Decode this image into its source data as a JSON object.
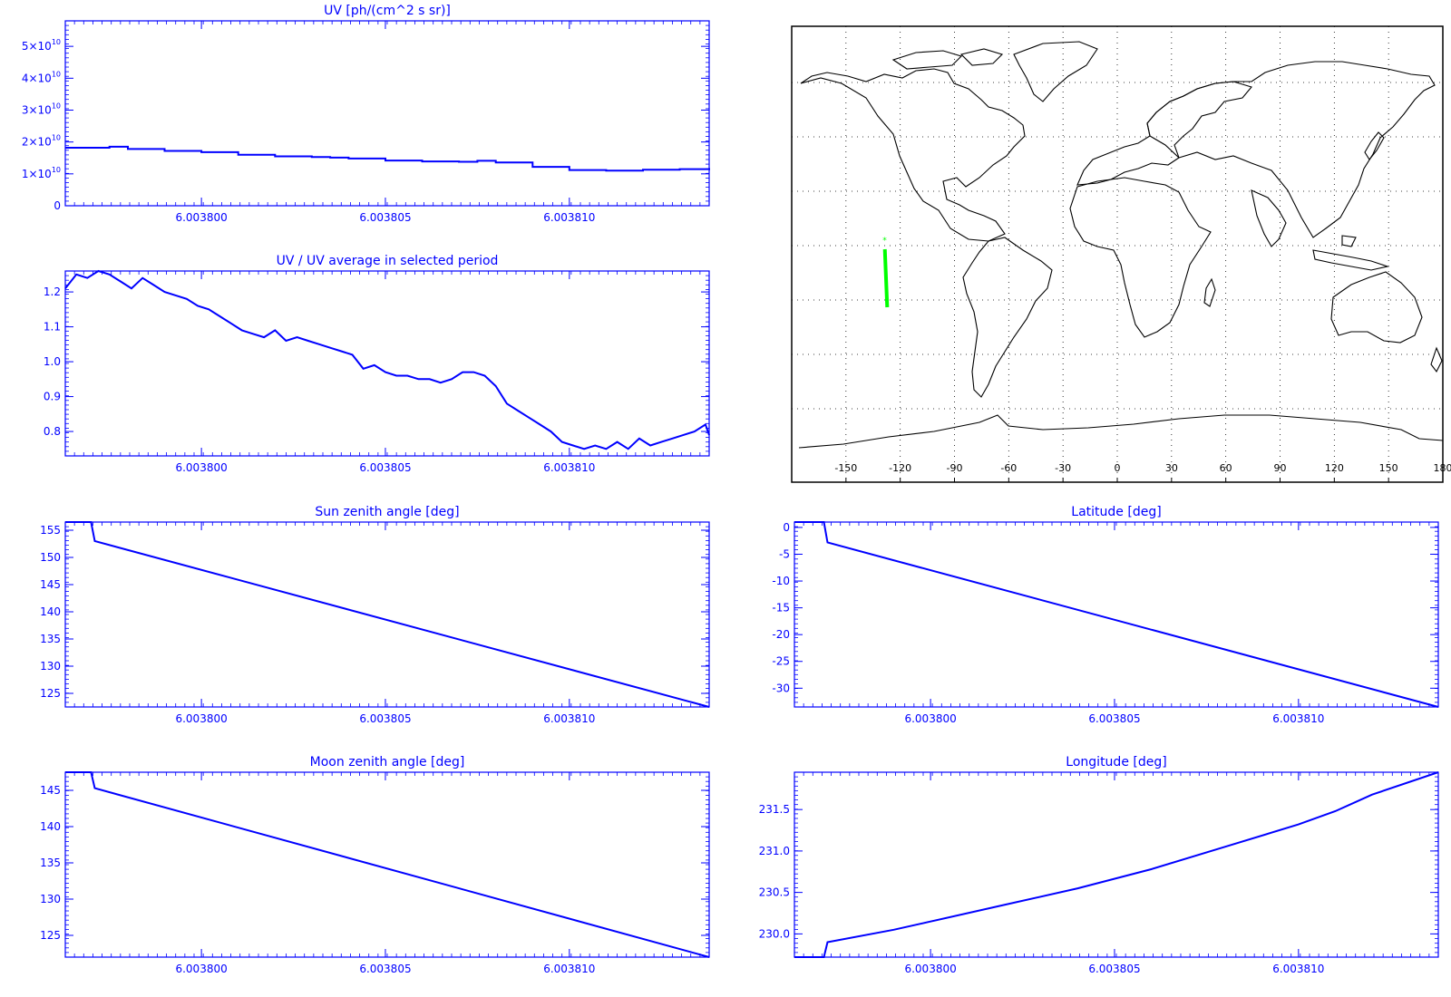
{
  "colors": {
    "axis": "#0000ff",
    "line": "#0000ff",
    "track": "#00ff00",
    "map": "#000000"
  },
  "chart_data": [
    {
      "id": "uv",
      "type": "line",
      "title": "UV [ph/(cm^2 s sr)]",
      "xlabel": "",
      "ylabel": "",
      "xlim": [
        6.0037963,
        6.0038138
      ],
      "xticks": [
        "6.003800",
        "6.003805",
        "6.003810"
      ],
      "xtick_values": [
        6.0038,
        6.003805,
        6.00381
      ],
      "ylim": [
        0,
        58000000000
      ],
      "yticks": [
        {
          "mant": "0",
          "exp": ""
        },
        {
          "mant": "1×10",
          "exp": "10"
        },
        {
          "mant": "2×10",
          "exp": "10"
        },
        {
          "mant": "3×10",
          "exp": "10"
        },
        {
          "mant": "4×10",
          "exp": "10"
        },
        {
          "mant": "5×10",
          "exp": "10"
        }
      ],
      "ytick_values": [
        0,
        10000000000,
        20000000000,
        30000000000,
        40000000000,
        50000000000
      ],
      "step": true,
      "series": [
        {
          "x": [
            6.0037963,
            6.0037975,
            6.003798,
            6.003799,
            6.0038,
            6.003801,
            6.003802,
            6.003803,
            6.0038035,
            6.003804,
            6.003805,
            6.003806,
            6.003807,
            6.0038075,
            6.003808,
            6.003809,
            6.00381,
            6.003811,
            6.003812,
            6.003813,
            6.0038138
          ],
          "y": [
            18200000000,
            18500000000,
            17800000000,
            17200000000,
            16800000000,
            16000000000,
            15500000000,
            15300000000,
            15100000000,
            14800000000,
            14200000000,
            13900000000,
            13800000000,
            14100000000,
            13600000000,
            12200000000,
            11200000000,
            11000000000,
            11300000000,
            11500000000,
            11800000000
          ]
        }
      ]
    },
    {
      "id": "uv-ratio",
      "type": "line",
      "title": "UV / UV average in selected period",
      "xlabel": "",
      "ylabel": "",
      "xlim": [
        6.0037963,
        6.0038138
      ],
      "xticks": [
        "6.003800",
        "6.003805",
        "6.003810"
      ],
      "xtick_values": [
        6.0038,
        6.003805,
        6.00381
      ],
      "ylim": [
        0.73,
        1.26
      ],
      "yticks": [
        "0.8",
        "0.9",
        "1.0",
        "1.1",
        "1.2"
      ],
      "ytick_values": [
        0.8,
        0.9,
        1.0,
        1.1,
        1.2
      ],
      "series": [
        {
          "x": [
            6.0037963,
            6.0037966,
            6.0037969,
            6.0037972,
            6.0037975,
            6.0037978,
            6.0037981,
            6.0037984,
            6.0037987,
            6.003799,
            6.0037993,
            6.0037996,
            6.0037999,
            6.0038002,
            6.0038005,
            6.0038008,
            6.0038011,
            6.0038014,
            6.0038017,
            6.003802,
            6.0038023,
            6.0038026,
            6.0038029,
            6.0038032,
            6.0038035,
            6.0038038,
            6.0038041,
            6.0038044,
            6.0038047,
            6.003805,
            6.0038053,
            6.0038056,
            6.0038059,
            6.0038062,
            6.0038065,
            6.0038068,
            6.0038071,
            6.0038074,
            6.0038077,
            6.003808,
            6.0038083,
            6.0038086,
            6.0038089,
            6.0038092,
            6.0038095,
            6.0038098,
            6.0038101,
            6.0038104,
            6.0038107,
            6.003811,
            6.0038113,
            6.0038116,
            6.0038119,
            6.0038122,
            6.0038125,
            6.0038128,
            6.0038131,
            6.0038134,
            6.0038137,
            6.0038138
          ],
          "y": [
            1.21,
            1.25,
            1.24,
            1.26,
            1.25,
            1.23,
            1.21,
            1.24,
            1.22,
            1.2,
            1.19,
            1.18,
            1.16,
            1.15,
            1.13,
            1.11,
            1.09,
            1.08,
            1.07,
            1.09,
            1.06,
            1.07,
            1.06,
            1.05,
            1.04,
            1.03,
            1.02,
            0.98,
            0.99,
            0.97,
            0.96,
            0.96,
            0.95,
            0.95,
            0.94,
            0.95,
            0.97,
            0.97,
            0.96,
            0.93,
            0.88,
            0.86,
            0.84,
            0.82,
            0.8,
            0.77,
            0.76,
            0.75,
            0.76,
            0.75,
            0.77,
            0.75,
            0.78,
            0.76,
            0.77,
            0.78,
            0.79,
            0.8,
            0.82,
            0.79
          ]
        }
      ]
    },
    {
      "id": "sun-zenith",
      "type": "line",
      "title": "Sun zenith angle [deg]",
      "xlabel": "",
      "ylabel": "",
      "xlim": [
        6.0037963,
        6.0038138
      ],
      "xticks": [
        "6.003800",
        "6.003805",
        "6.003810"
      ],
      "xtick_values": [
        6.0038,
        6.003805,
        6.00381
      ],
      "ylim": [
        122.5,
        156.5
      ],
      "yticks": [
        "125",
        "130",
        "135",
        "140",
        "145",
        "150",
        "155"
      ],
      "ytick_values": [
        125,
        130,
        135,
        140,
        145,
        150,
        155
      ],
      "series": [
        {
          "x": [
            6.0037963,
            6.003797,
            6.0037971,
            6.0038138
          ],
          "y": [
            156.5,
            156.5,
            153,
            122.5
          ]
        }
      ]
    },
    {
      "id": "latitude",
      "type": "line",
      "title": "Latitude [deg]",
      "xlabel": "",
      "ylabel": "",
      "xlim": [
        6.0037963,
        6.0038138
      ],
      "xticks": [
        "6.003800",
        "6.003805",
        "6.003810"
      ],
      "xtick_values": [
        6.0038,
        6.003805,
        6.00381
      ],
      "ylim": [
        -33.5,
        1
      ],
      "yticks": [
        "-30",
        "-25",
        "-20",
        "-15",
        "-10",
        "-5",
        "0"
      ],
      "ytick_values": [
        -30,
        -25,
        -20,
        -15,
        -10,
        -5,
        0
      ],
      "series": [
        {
          "x": [
            6.0037963,
            6.0037971,
            6.0037972,
            6.0038138
          ],
          "y": [
            1,
            1,
            -2.8,
            -33.5
          ]
        }
      ]
    },
    {
      "id": "moon-zenith",
      "type": "line",
      "title": "Moon zenith angle [deg]",
      "xlabel": "",
      "ylabel": "",
      "xlim": [
        6.0037963,
        6.0038138
      ],
      "xticks": [
        "6.003800",
        "6.003805",
        "6.003810"
      ],
      "xtick_values": [
        6.0038,
        6.003805,
        6.00381
      ],
      "ylim": [
        122,
        147.5
      ],
      "yticks": [
        "125",
        "130",
        "135",
        "140",
        "145"
      ],
      "ytick_values": [
        125,
        130,
        135,
        140,
        145
      ],
      "series": [
        {
          "x": [
            6.0037963,
            6.003797,
            6.0037971,
            6.0038138
          ],
          "y": [
            147.5,
            147.5,
            145.3,
            122
          ]
        }
      ]
    },
    {
      "id": "longitude",
      "type": "line",
      "title": "Longitude [deg]",
      "xlabel": "",
      "ylabel": "",
      "xlim": [
        6.0037963,
        6.0038138
      ],
      "xticks": [
        "6.003800",
        "6.003805",
        "6.003810"
      ],
      "xtick_values": [
        6.0038,
        6.003805,
        6.00381
      ],
      "ylim": [
        229.72,
        231.95
      ],
      "yticks": [
        "230.0",
        "230.5",
        "231.0",
        "231.5"
      ],
      "ytick_values": [
        230.0,
        230.5,
        231.0,
        231.5
      ],
      "series": [
        {
          "x": [
            6.0037963,
            6.0037971,
            6.0037972,
            6.003799,
            6.0038,
            6.003802,
            6.003804,
            6.003806,
            6.003808,
            6.00381,
            6.003811,
            6.003812,
            6.0038138
          ],
          "y": [
            229.72,
            229.72,
            229.9,
            230.05,
            230.15,
            230.35,
            230.55,
            230.78,
            231.05,
            231.32,
            231.48,
            231.68,
            231.95
          ]
        }
      ]
    }
  ],
  "map": {
    "type": "map",
    "projection": "equirectangular",
    "xticks": [
      "-150",
      "-120",
      "-90",
      "-60",
      "-30",
      "0",
      "30",
      "60",
      "90",
      "120",
      "150",
      "180"
    ],
    "xtick_values": [
      -150,
      -120,
      -90,
      -60,
      -30,
      0,
      30,
      60,
      90,
      120,
      150,
      180
    ],
    "grid": true,
    "track": {
      "lon": [
        -128.5,
        -127.2
      ],
      "lat": [
        -2.0,
        -34.0
      ]
    },
    "track_start_marker": {
      "lon": -128.6,
      "lat": 1.5
    }
  }
}
